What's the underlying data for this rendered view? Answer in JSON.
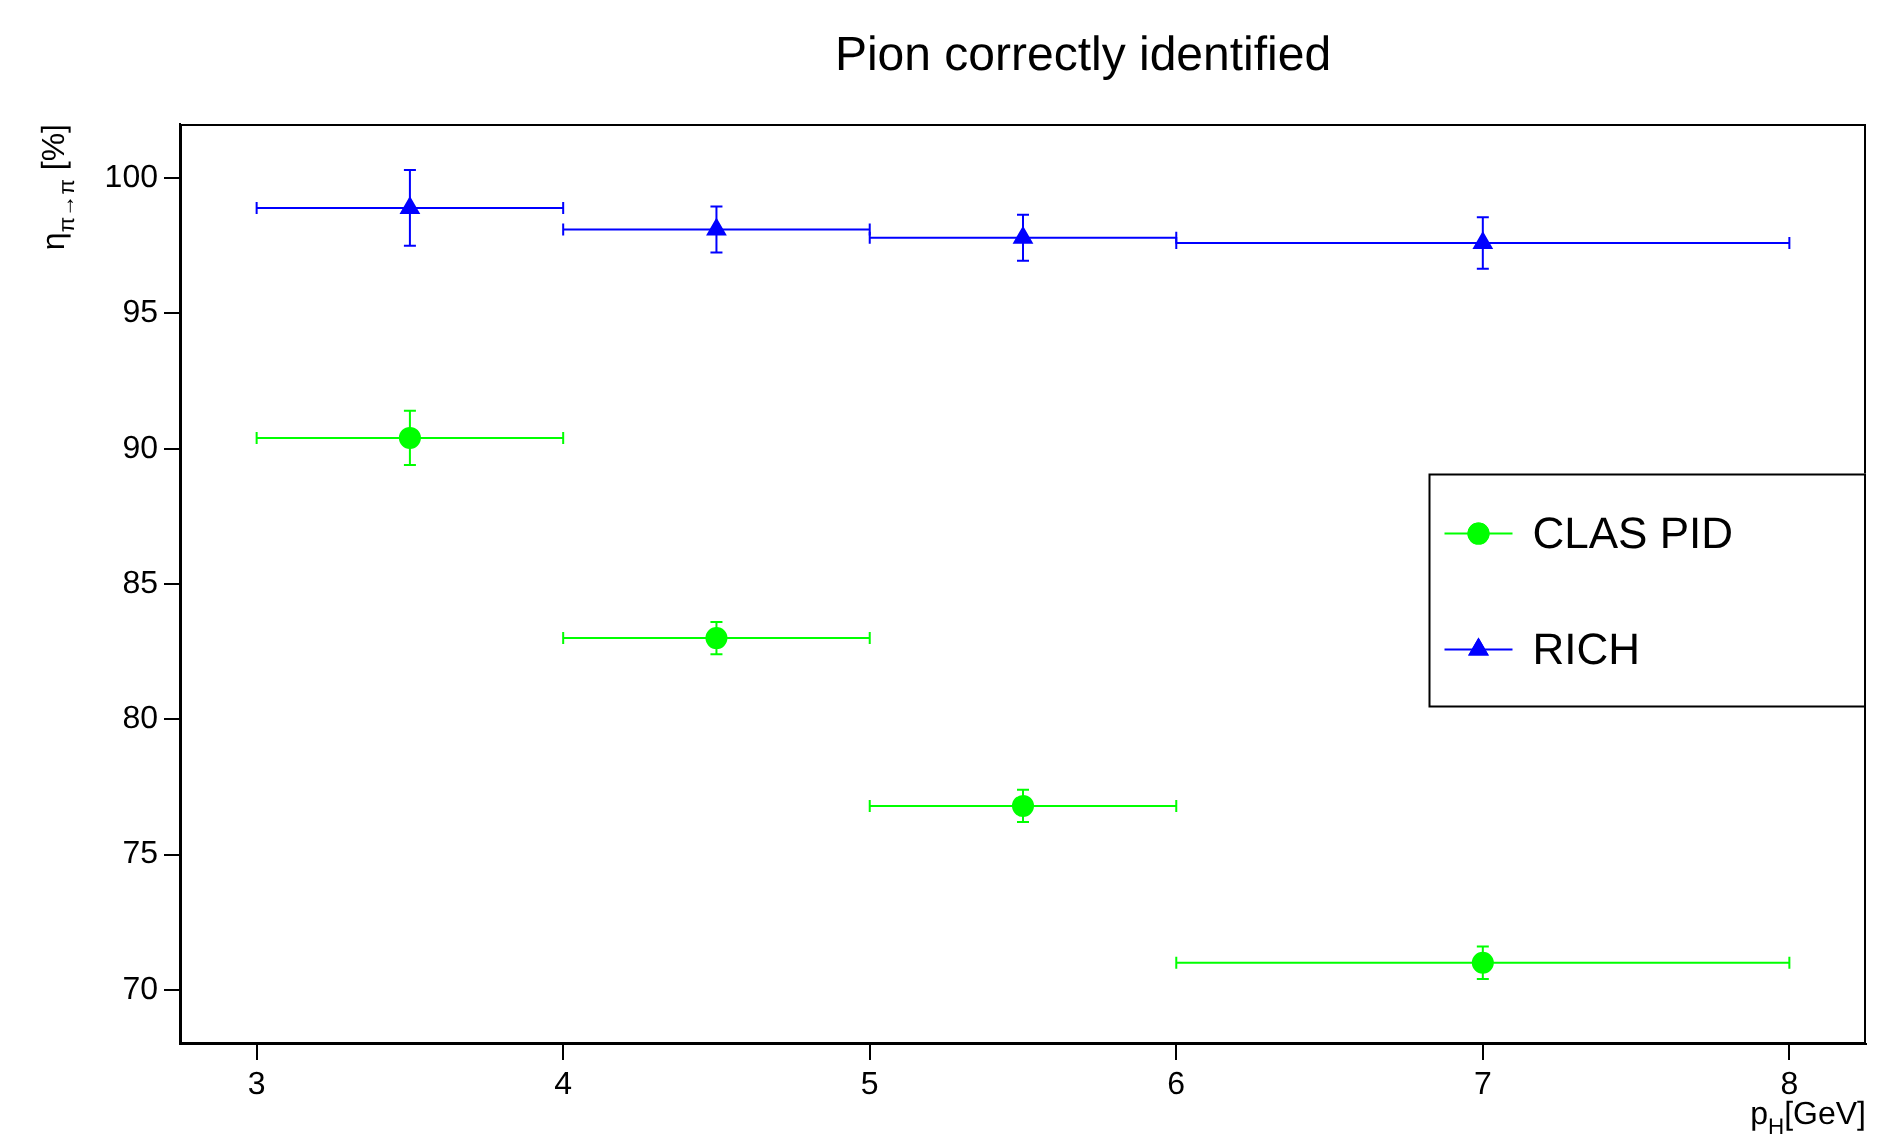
{
  "chart_data": {
    "type": "scatter",
    "title": "Pion correctly identified",
    "xlabel": "p$_{H}$[GeV]",
    "ylabel": "η$_{π→π}$ [%]",
    "xlim": [
      2.75,
      8.25
    ],
    "xticks": [
      3,
      4,
      5,
      6,
      7,
      8
    ],
    "ylim": [
      68,
      102
    ],
    "yticks": [
      70,
      75,
      80,
      85,
      90,
      95,
      100
    ],
    "grid": false,
    "legend": "right",
    "series": [
      {
        "name": "CLAS PID",
        "color": "#00ff00",
        "marker": "circle",
        "x": [
          3.5,
          4.5,
          5.5,
          7
        ],
        "values": [
          90.4,
          83.0,
          76.8,
          71.0
        ],
        "errors": [
          1.0,
          0.6,
          0.6,
          0.6
        ],
        "xerrors": [
          0.5,
          0.5,
          0.5,
          1
        ]
      },
      {
        "name": "RICH",
        "color": "#0000ff",
        "marker": "triangle",
        "x": [
          3.5,
          4.5,
          5.5,
          7
        ],
        "values": [
          98.9,
          98.1,
          97.8,
          97.6
        ],
        "errors": [
          1.4,
          0.85,
          0.85,
          0.95
        ],
        "xerrors": [
          0.5,
          0.5,
          0.5,
          1
        ]
      }
    ]
  }
}
